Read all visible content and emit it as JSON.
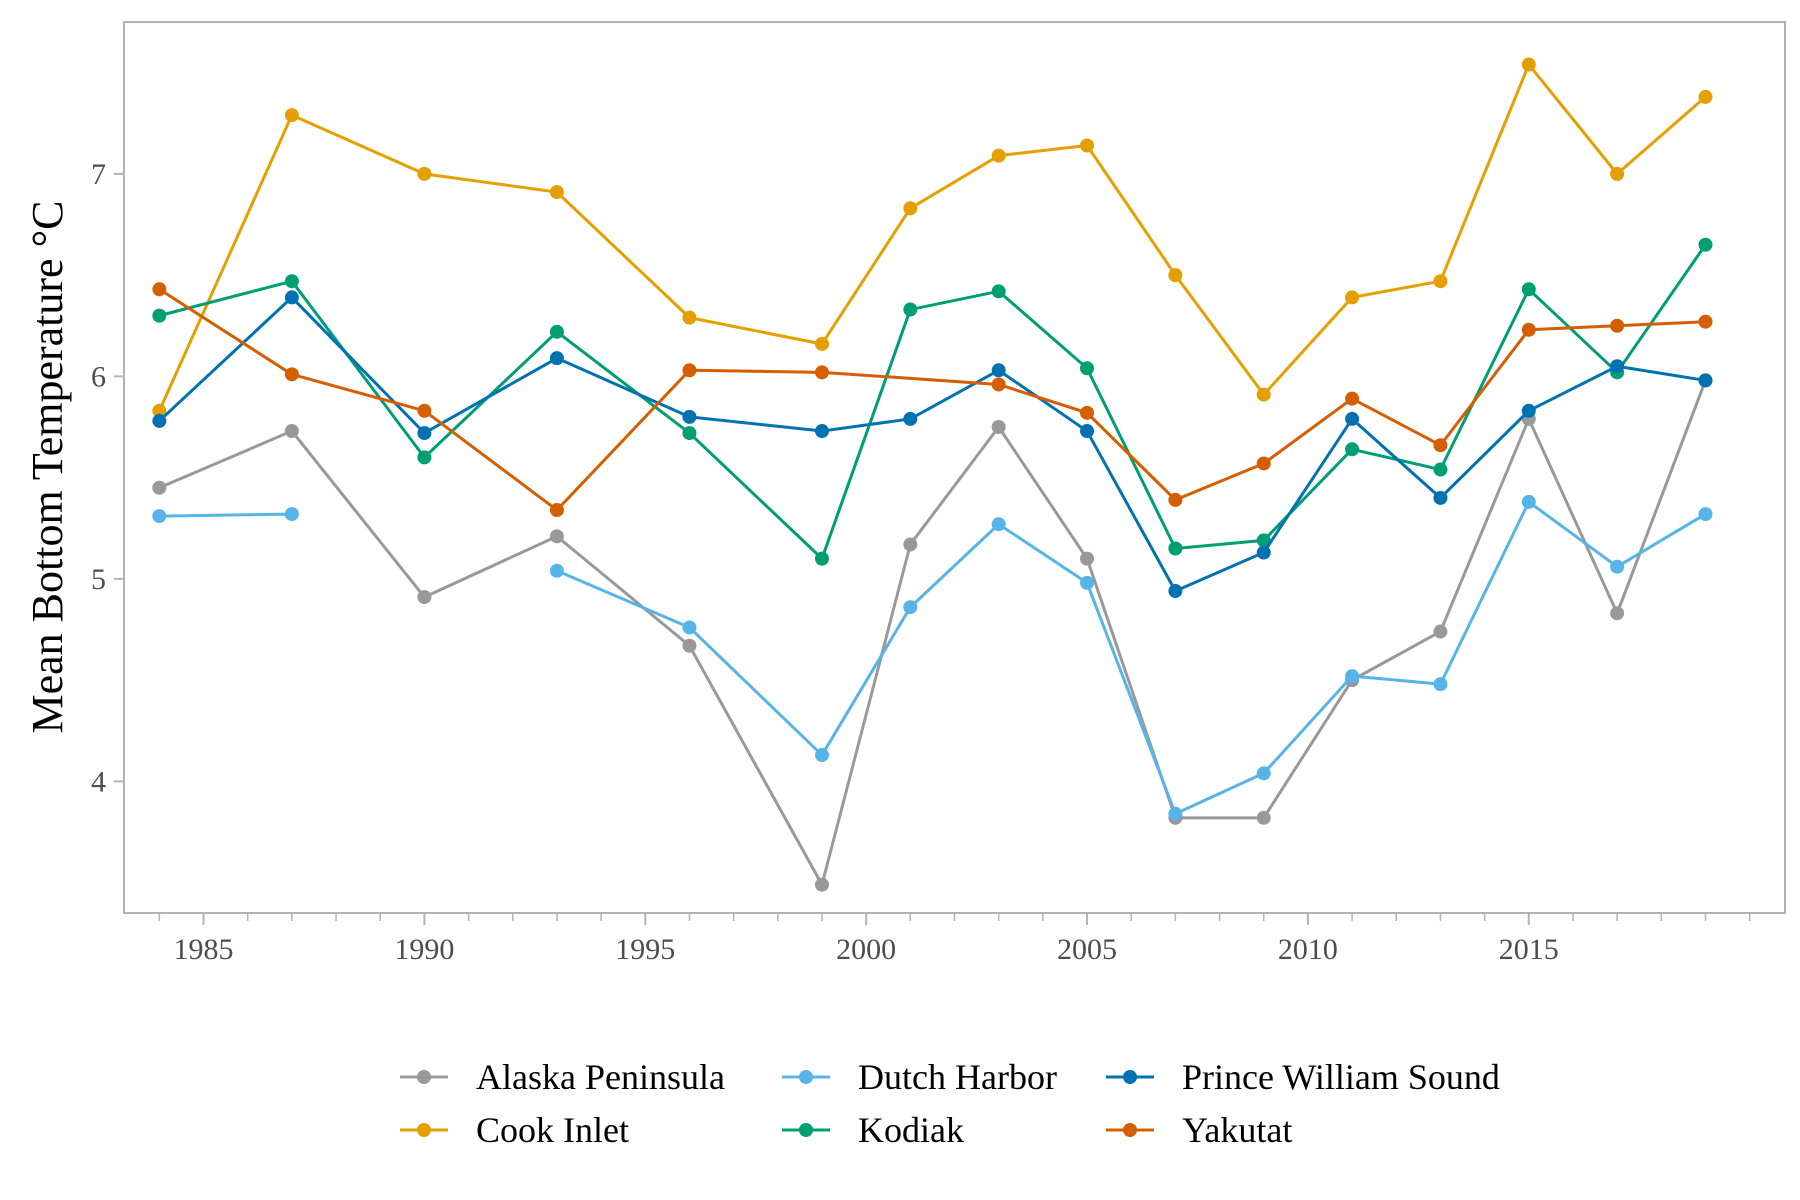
{
  "chart_data": {
    "type": "line",
    "title": "",
    "xlabel": "",
    "ylabel": "Mean Bottom Temperature °C",
    "xlim": [
      1983.2,
      2020.8
    ],
    "ylim": [
      3.35,
      7.75
    ],
    "x_ticks": [
      1985,
      1990,
      1995,
      2000,
      2005,
      2010,
      2015
    ],
    "x_tick_labels": [
      "1985",
      "1990",
      "1995",
      "2000",
      "2005",
      "2010",
      "2015"
    ],
    "x_minor_ticks": [
      1984,
      1986,
      1987,
      1988,
      1989,
      1991,
      1992,
      1993,
      1994,
      1996,
      1997,
      1998,
      1999,
      2001,
      2002,
      2003,
      2004,
      2006,
      2007,
      2008,
      2009,
      2011,
      2012,
      2013,
      2014,
      2016,
      2017,
      2018,
      2019,
      2020
    ],
    "y_ticks": [
      4,
      5,
      6,
      7
    ],
    "y_tick_labels": [
      "4",
      "5",
      "6",
      "7"
    ],
    "grid": false,
    "legend_position": "bottom",
    "series": [
      {
        "name": "Alaska Peninsula",
        "color": "#999999",
        "x": [
          1984,
          1987,
          1990,
          1993,
          1996,
          1999,
          2001,
          2003,
          2005,
          2007,
          2009,
          2011,
          2013,
          2015,
          2017,
          2019
        ],
        "y": [
          5.45,
          5.73,
          4.91,
          5.21,
          4.67,
          3.49,
          5.17,
          5.75,
          5.1,
          3.82,
          3.82,
          4.5,
          4.74,
          5.79,
          4.83,
          5.98
        ]
      },
      {
        "name": "Cook Inlet",
        "color": "#E69F00",
        "x": [
          1984,
          1987,
          1990,
          1993,
          1996,
          1999,
          2001,
          2003,
          2005,
          2007,
          2009,
          2011,
          2013,
          2015,
          2017,
          2019
        ],
        "y": [
          5.83,
          7.29,
          7.0,
          6.91,
          6.29,
          6.16,
          6.83,
          7.09,
          7.14,
          6.5,
          5.91,
          6.39,
          6.47,
          7.54,
          7.0,
          7.38
        ]
      },
      {
        "name": "Dutch Harbor",
        "color": "#56B4E9",
        "x": [
          1984,
          1987,
          null,
          1993,
          1996,
          1999,
          2001,
          2003,
          2005,
          2007,
          2009,
          2011,
          2013,
          2015,
          2017,
          2019
        ],
        "y": [
          5.31,
          5.32,
          null,
          5.04,
          4.76,
          4.13,
          4.86,
          5.27,
          4.98,
          3.84,
          4.04,
          4.52,
          4.48,
          5.38,
          5.06,
          5.32
        ]
      },
      {
        "name": "Kodiak",
        "color": "#009E73",
        "x": [
          1984,
          1987,
          1990,
          1993,
          1996,
          1999,
          2001,
          2003,
          2005,
          2007,
          2009,
          2011,
          2013,
          2015,
          2017,
          2019
        ],
        "y": [
          6.3,
          6.47,
          5.6,
          6.22,
          5.72,
          5.1,
          6.33,
          6.42,
          6.04,
          5.15,
          5.19,
          5.64,
          5.54,
          6.43,
          6.02,
          6.65
        ]
      },
      {
        "name": "Prince William Sound",
        "color": "#0072B2",
        "x": [
          1984,
          1987,
          1990,
          1993,
          1996,
          1999,
          2001,
          2003,
          2005,
          2007,
          2009,
          2011,
          2013,
          2015,
          2017,
          2019
        ],
        "y": [
          5.78,
          6.39,
          5.72,
          6.09,
          5.8,
          5.73,
          5.79,
          6.03,
          5.73,
          4.94,
          5.13,
          5.79,
          5.4,
          5.83,
          6.05,
          5.98
        ]
      },
      {
        "name": "Yakutat",
        "color": "#D55E00",
        "x": [
          1984,
          1987,
          1990,
          1993,
          1996,
          1999,
          2003,
          2005,
          2007,
          2009,
          2011,
          2013,
          2015,
          2017,
          2019
        ],
        "y": [
          6.43,
          6.01,
          5.83,
          5.34,
          6.03,
          6.02,
          5.96,
          5.82,
          5.39,
          5.57,
          5.89,
          5.66,
          6.23,
          6.25,
          6.27
        ]
      }
    ]
  },
  "colors": {
    "panel_border": "#b3b3b3",
    "tick_text": "#4d4d4d"
  }
}
